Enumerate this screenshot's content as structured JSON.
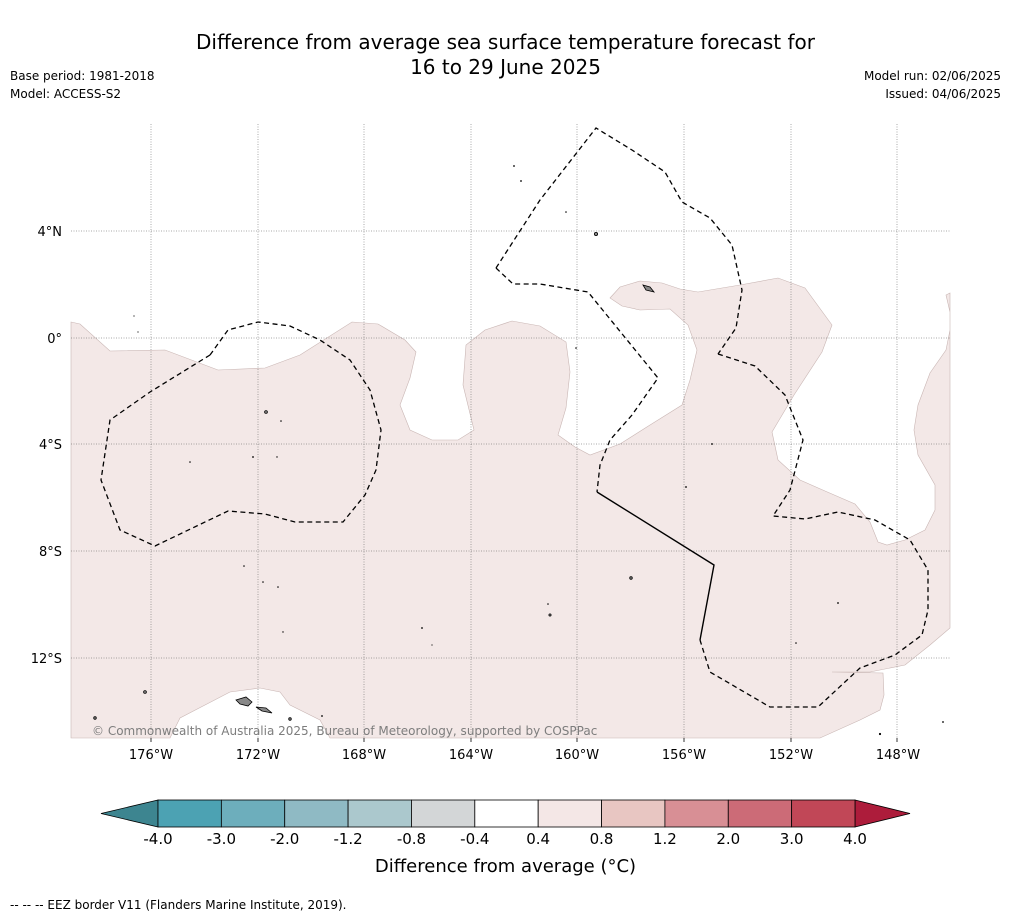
{
  "header": {
    "title_line1": "Difference from average sea surface temperature forecast for",
    "title_line2": "16 to 29 June 2025",
    "base_period": "Base period: 1981-2018",
    "model": "Model: ACCESS-S2",
    "model_run": "Model run: 02/06/2025",
    "issued": "Issued: 04/06/2025"
  },
  "map": {
    "lon_labels": [
      "176°W",
      "172°W",
      "168°W",
      "164°W",
      "160°W",
      "156°W",
      "152°W",
      "148°W"
    ],
    "lat_labels": [
      "4°N",
      "0°",
      "4°S",
      "8°S",
      "12°S"
    ],
    "copyright": "© Commonwealth of Australia 2025, Bureau of Meteorology, supported by COSPPac",
    "anomaly_fill_color": "#f3e8e7",
    "dominant_category": "0.4 to 0.8"
  },
  "colorbar": {
    "labels": [
      "-4.0",
      "-3.0",
      "-2.0",
      "-1.2",
      "-0.8",
      "-0.4",
      "0.4",
      "0.8",
      "1.2",
      "2.0",
      "3.0",
      "4.0"
    ],
    "colors": [
      "#4ca2b3",
      "#6daebc",
      "#8fbac4",
      "#abc8cd",
      "#d3d6d7",
      "#ffffff",
      "#f4e7e6",
      "#e8c6c2",
      "#d88f95",
      "#cc6b77",
      "#c14757"
    ],
    "low_extend_color": "#3d8590",
    "high_extend_color": "#ad1c3b",
    "title": "Difference from average (°C)"
  },
  "footer": {
    "eez_note": "--  --  -- EEZ border V11 (Flanders Marine Institute, 2019)."
  }
}
